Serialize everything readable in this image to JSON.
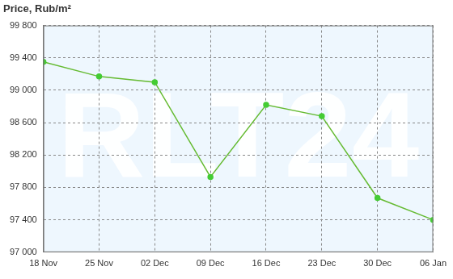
{
  "chart_data": {
    "type": "line",
    "title": "Price, Rub/m²",
    "categories": [
      "18 Nov",
      "25 Nov",
      "02 Dec",
      "09 Dec",
      "16 Dec",
      "23 Dec",
      "30 Dec",
      "06 Jan"
    ],
    "values": [
      99350,
      99170,
      99100,
      97930,
      98820,
      98680,
      97670,
      97400
    ],
    "color": "#66bb33",
    "marker": "circle",
    "ylim": [
      97000,
      99800
    ],
    "yticks": [
      {
        "value": 97000,
        "label": "97 000"
      },
      {
        "value": 97400,
        "label": "97 400"
      },
      {
        "value": 97800,
        "label": "97 800"
      },
      {
        "value": 98200,
        "label": "98 200"
      },
      {
        "value": 98600,
        "label": "98 600"
      },
      {
        "value": 99000,
        "label": "99 000"
      },
      {
        "value": 99400,
        "label": "99 400"
      },
      {
        "value": 99800,
        "label": "99 800"
      }
    ],
    "grid": true,
    "annotations": [
      "RLT24"
    ]
  }
}
